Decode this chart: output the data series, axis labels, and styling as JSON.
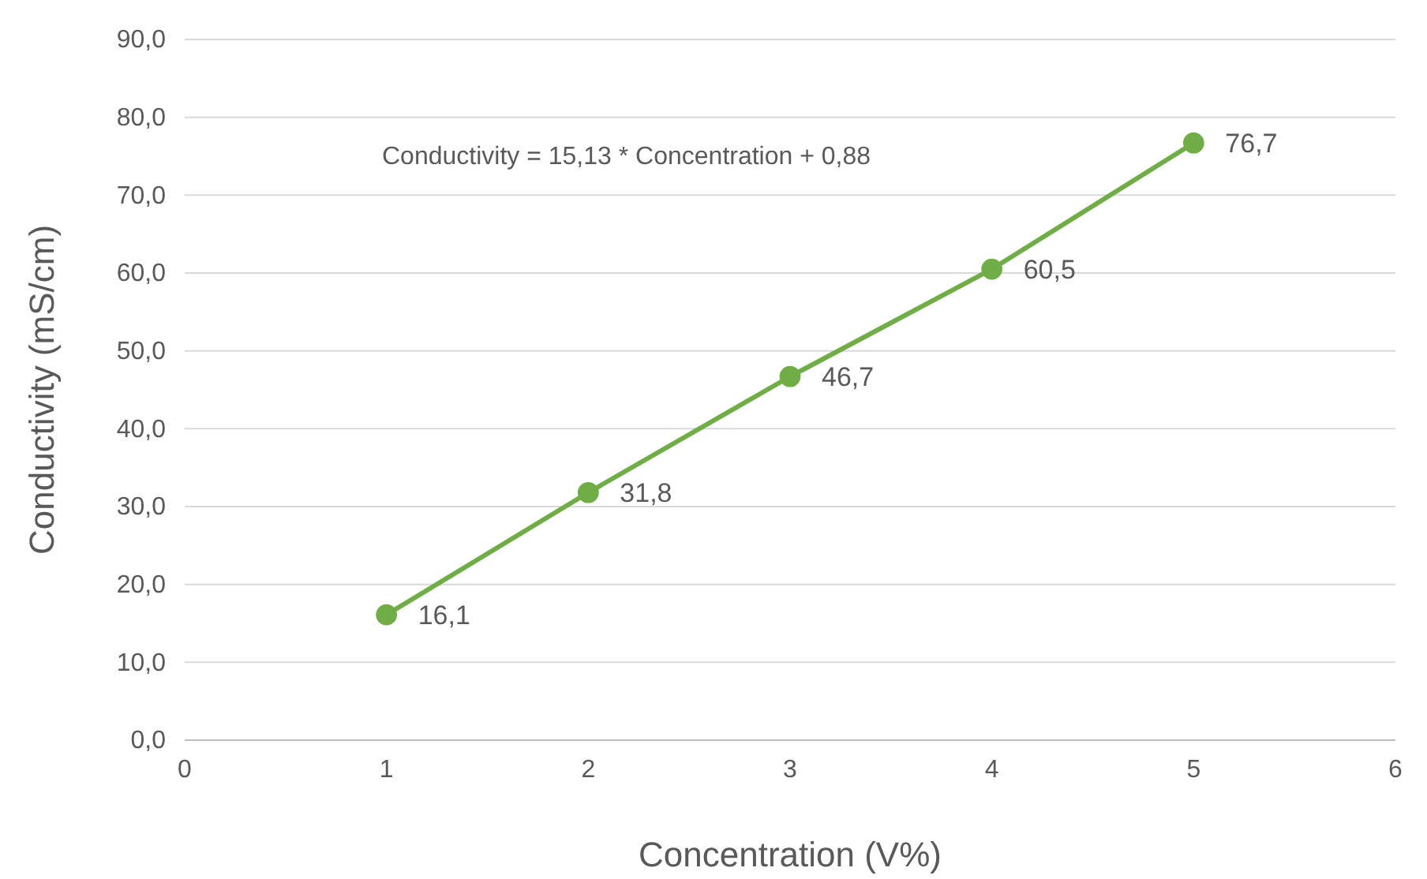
{
  "chart_data": {
    "type": "line",
    "xlabel": "Concentration (V%)",
    "ylabel": "Conductivity (mS/cm)",
    "annotations": [
      "Conductivity = 15,13 * Concentration + 0,88"
    ],
    "x": [
      1,
      2,
      3,
      4,
      5
    ],
    "series": [
      {
        "color": "#70ad47",
        "values": [
          16.1,
          31.8,
          46.7,
          60.5,
          76.7
        ],
        "value_labels": [
          "16,1",
          "31,8",
          "46,7",
          "60,5",
          "76,7"
        ]
      }
    ],
    "xlim": [
      0,
      6
    ],
    "xticks": [
      0,
      1,
      2,
      3,
      4,
      5,
      6
    ],
    "ylim": [
      0,
      90
    ],
    "yticks": [
      {
        "value": 0,
        "label": "0,0"
      },
      {
        "value": 10,
        "label": "10,0"
      },
      {
        "value": 20,
        "label": "20,0"
      },
      {
        "value": 30,
        "label": "30,0"
      },
      {
        "value": 40,
        "label": "40,0"
      },
      {
        "value": 50,
        "label": "50,0"
      },
      {
        "value": 60,
        "label": "60,0"
      },
      {
        "value": 70,
        "label": "70,0"
      },
      {
        "value": 80,
        "label": "80,0"
      },
      {
        "value": 90,
        "label": "90,0"
      }
    ],
    "grid": "y",
    "marker": "circle",
    "line_style": "solid"
  }
}
